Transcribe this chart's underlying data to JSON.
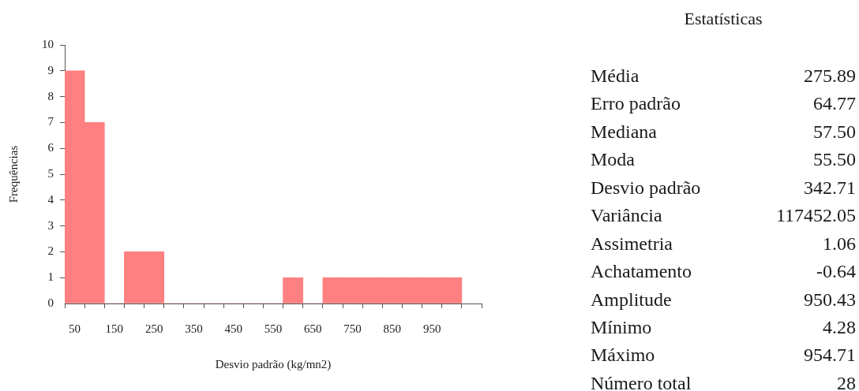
{
  "chart_data": [
    {
      "type": "histogram",
      "xlabel": "Desvio padrão (kg/mn2)",
      "ylabel": "Frequências",
      "bins": [
        25,
        75,
        125,
        175,
        225,
        275,
        325,
        375,
        425,
        475,
        525,
        575,
        625,
        675,
        725,
        775,
        825,
        875,
        925,
        975,
        1025
      ],
      "values": [
        9,
        7,
        0,
        2,
        2,
        0,
        0,
        0,
        0,
        0,
        0,
        1,
        0,
        1,
        1,
        1,
        1,
        1,
        1,
        1
      ],
      "color": "#ff8080",
      "xlim": [
        25,
        1075
      ],
      "xticks": [
        {
          "value": 25,
          "label": null
        },
        50,
        {
          "value": 75,
          "label": null
        },
        {
          "value": 125,
          "label": null
        },
        150,
        {
          "value": 175,
          "label": null
        },
        {
          "value": 225,
          "label": null
        },
        250,
        {
          "value": 275,
          "label": null
        },
        {
          "value": 325,
          "label": null
        },
        350,
        {
          "value": 375,
          "label": null
        },
        {
          "value": 425,
          "label": null
        },
        450,
        {
          "value": 475,
          "label": null
        },
        {
          "value": 525,
          "label": null
        },
        550,
        {
          "value": 575,
          "label": null
        },
        {
          "value": 625,
          "label": null
        },
        650,
        {
          "value": 675,
          "label": null
        },
        {
          "value": 725,
          "label": null
        },
        750,
        {
          "value": 775,
          "label": null
        },
        {
          "value": 825,
          "label": null
        },
        850,
        {
          "value": 875,
          "label": null
        },
        {
          "value": 925,
          "label": null
        },
        950,
        {
          "value": 975,
          "label": null
        },
        {
          "value": 1025,
          "label": null
        },
        {
          "value": 1075,
          "label": null
        }
      ],
      "ylim": [
        0,
        10
      ],
      "yticks": [
        0,
        1,
        2,
        3,
        4,
        5,
        6,
        7,
        8,
        9,
        10
      ]
    },
    {
      "type": "other",
      "title": "Estatísticas",
      "categories": [
        "Média",
        "Erro padrão",
        "Mediana",
        "Moda",
        "Desvio padrão",
        "Variância",
        "Assimetria",
        "Achatamento",
        "Amplitude",
        "Mínimo",
        "Máximo",
        "Número total"
      ],
      "value_labels": [
        "275.89",
        "64.77",
        "57.50",
        "55.50",
        "342.71",
        "117452.05",
        "1.06",
        "-0.64",
        "950.43",
        "4.28",
        "954.71",
        "28"
      ]
    }
  ]
}
